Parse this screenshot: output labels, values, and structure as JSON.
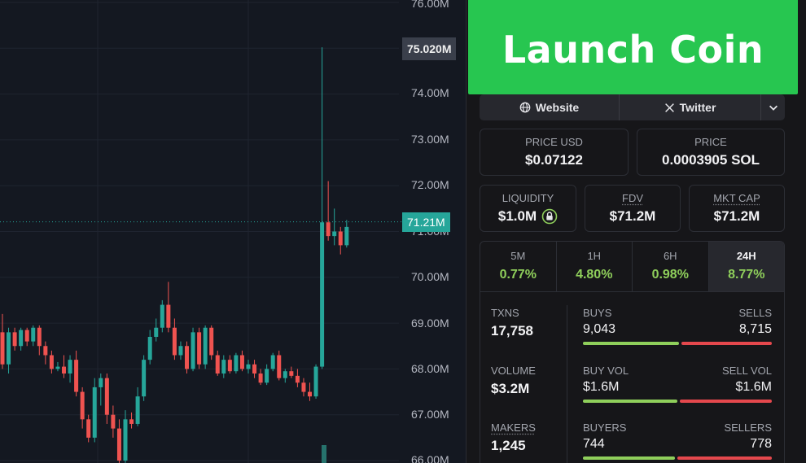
{
  "chart": {
    "axis_labels": [
      "76.00M",
      "74.00M",
      "73.00M",
      "72.00M",
      "71.00M",
      "70.00M",
      "69.00M",
      "68.00M",
      "67.00M",
      "66.00M"
    ],
    "high_price_label": "75.020M",
    "current_price_label": "71.21M",
    "colors": {
      "up": "#26a69a",
      "down": "#ef5350",
      "background": "#141821",
      "grid": "#1f2430"
    }
  },
  "chart_data": {
    "type": "candlestick",
    "unit": "market cap (USD)",
    "ylim": [
      66.0,
      76.0
    ],
    "current": 71.21,
    "high": 75.02,
    "candles": [
      {
        "o": 68.8,
        "c": 68.1,
        "h": 69.2,
        "l": 68.0
      },
      {
        "o": 68.1,
        "c": 68.8,
        "h": 68.9,
        "l": 67.9
      },
      {
        "o": 68.8,
        "c": 68.5,
        "h": 68.9,
        "l": 68.4
      },
      {
        "o": 68.5,
        "c": 68.85,
        "h": 68.9,
        "l": 68.4
      },
      {
        "o": 68.85,
        "c": 68.6,
        "h": 68.9,
        "l": 68.5
      },
      {
        "o": 68.6,
        "c": 68.9,
        "h": 68.95,
        "l": 68.5
      },
      {
        "o": 68.9,
        "c": 68.5,
        "h": 68.95,
        "l": 68.3
      },
      {
        "o": 68.5,
        "c": 68.3,
        "h": 68.6,
        "l": 68.1
      },
      {
        "o": 68.3,
        "c": 68.0,
        "h": 68.4,
        "l": 67.9
      },
      {
        "o": 68.0,
        "c": 68.05,
        "h": 68.15,
        "l": 67.95
      },
      {
        "o": 68.05,
        "c": 67.9,
        "h": 68.3,
        "l": 67.8
      },
      {
        "o": 67.9,
        "c": 68.2,
        "h": 68.3,
        "l": 67.7
      },
      {
        "o": 68.2,
        "c": 67.5,
        "h": 68.4,
        "l": 67.4
      },
      {
        "o": 67.5,
        "c": 66.9,
        "h": 67.6,
        "l": 66.7
      },
      {
        "o": 66.9,
        "c": 66.5,
        "h": 67.0,
        "l": 66.4
      },
      {
        "o": 66.5,
        "c": 67.6,
        "h": 67.8,
        "l": 66.4
      },
      {
        "o": 67.6,
        "c": 67.8,
        "h": 67.9,
        "l": 67.2
      },
      {
        "o": 67.8,
        "c": 67.0,
        "h": 67.9,
        "l": 66.8
      },
      {
        "o": 67.0,
        "c": 66.7,
        "h": 67.2,
        "l": 66.5
      },
      {
        "o": 66.7,
        "c": 66.0,
        "h": 66.9,
        "l": 65.9
      },
      {
        "o": 66.0,
        "c": 66.9,
        "h": 67.1,
        "l": 65.95
      },
      {
        "o": 66.9,
        "c": 66.8,
        "h": 67.05,
        "l": 66.7
      },
      {
        "o": 66.8,
        "c": 67.4,
        "h": 67.6,
        "l": 66.75
      },
      {
        "o": 67.4,
        "c": 68.2,
        "h": 68.3,
        "l": 67.3
      },
      {
        "o": 68.2,
        "c": 68.7,
        "h": 68.85,
        "l": 68.1
      },
      {
        "o": 68.7,
        "c": 68.9,
        "h": 69.1,
        "l": 68.6
      },
      {
        "o": 68.9,
        "c": 69.4,
        "h": 69.5,
        "l": 68.8
      },
      {
        "o": 69.4,
        "c": 68.9,
        "h": 69.9,
        "l": 68.8
      },
      {
        "o": 68.9,
        "c": 68.3,
        "h": 69.1,
        "l": 68.2
      },
      {
        "o": 68.3,
        "c": 68.5,
        "h": 68.6,
        "l": 68.2
      },
      {
        "o": 68.5,
        "c": 68.0,
        "h": 68.6,
        "l": 67.9
      },
      {
        "o": 68.0,
        "c": 68.8,
        "h": 68.9,
        "l": 67.95
      },
      {
        "o": 68.8,
        "c": 68.1,
        "h": 68.9,
        "l": 68.0
      },
      {
        "o": 68.1,
        "c": 68.9,
        "h": 68.95,
        "l": 68.0
      },
      {
        "o": 68.9,
        "c": 68.3,
        "h": 68.95,
        "l": 68.2
      },
      {
        "o": 68.3,
        "c": 67.9,
        "h": 68.4,
        "l": 67.85
      },
      {
        "o": 67.9,
        "c": 68.2,
        "h": 68.3,
        "l": 67.8
      },
      {
        "o": 68.2,
        "c": 67.95,
        "h": 68.3,
        "l": 67.9
      },
      {
        "o": 67.95,
        "c": 68.3,
        "h": 68.35,
        "l": 67.9
      },
      {
        "o": 68.3,
        "c": 68.0,
        "h": 68.4,
        "l": 67.95
      },
      {
        "o": 68.0,
        "c": 68.1,
        "h": 68.2,
        "l": 67.9
      },
      {
        "o": 68.1,
        "c": 67.9,
        "h": 68.2,
        "l": 67.8
      },
      {
        "o": 67.9,
        "c": 67.7,
        "h": 68.0,
        "l": 67.65
      },
      {
        "o": 67.7,
        "c": 68.0,
        "h": 68.1,
        "l": 67.65
      },
      {
        "o": 68.0,
        "c": 68.3,
        "h": 68.35,
        "l": 67.95
      },
      {
        "o": 68.3,
        "c": 67.8,
        "h": 68.4,
        "l": 67.75
      },
      {
        "o": 67.8,
        "c": 67.95,
        "h": 68.0,
        "l": 67.7
      },
      {
        "o": 67.95,
        "c": 67.85,
        "h": 68.05,
        "l": 67.8
      },
      {
        "o": 67.85,
        "c": 67.7,
        "h": 68.0,
        "l": 67.6
      },
      {
        "o": 67.7,
        "c": 67.5,
        "h": 67.8,
        "l": 67.4
      },
      {
        "o": 67.5,
        "c": 67.4,
        "h": 67.7,
        "l": 67.3
      },
      {
        "o": 67.4,
        "c": 68.05,
        "h": 68.1,
        "l": 67.35
      },
      {
        "o": 68.05,
        "c": 71.2,
        "h": 75.02,
        "l": 68.0
      },
      {
        "o": 71.2,
        "c": 70.9,
        "h": 72.1,
        "l": 70.8
      },
      {
        "o": 70.9,
        "c": 71.0,
        "h": 71.5,
        "l": 70.7
      },
      {
        "o": 71.0,
        "c": 70.7,
        "h": 71.1,
        "l": 70.5
      },
      {
        "o": 70.7,
        "c": 71.1,
        "h": 71.25,
        "l": 70.65
      }
    ],
    "volume_bar": {
      "level": 0.4
    }
  },
  "panel": {
    "title": "Launch Coin",
    "links": {
      "website": "Website",
      "twitter": "Twitter"
    },
    "price_usd": {
      "label": "PRICE USD",
      "value": "$0.07122"
    },
    "price_sol": {
      "label": "PRICE",
      "value": "0.0003905 SOL"
    },
    "liquidity": {
      "label": "LIQUIDITY",
      "value": "$1.0M"
    },
    "fdv": {
      "label": "FDV",
      "value": "$71.2M"
    },
    "mkt_cap": {
      "label": "MKT CAP",
      "value": "$71.2M"
    },
    "timeframes": [
      {
        "label": "5M",
        "value": "0.77%"
      },
      {
        "label": "1H",
        "value": "4.80%"
      },
      {
        "label": "6H",
        "value": "0.98%"
      },
      {
        "label": "24H",
        "value": "8.77%",
        "active": true
      }
    ],
    "txns": {
      "label": "TXNS",
      "value": "17,758"
    },
    "volume": {
      "label": "VOLUME",
      "value": "$3.2M"
    },
    "makers": {
      "label": "MAKERS",
      "value": "1,245"
    },
    "buys": {
      "label": "BUYS",
      "value": "9,043",
      "ratio": 0.509
    },
    "sells": {
      "label": "SELLS",
      "value": "8,715"
    },
    "buy_vol": {
      "label": "BUY VOL",
      "value": "$1.6M",
      "ratio": 0.5
    },
    "sell_vol": {
      "label": "SELL VOL",
      "value": "$1.6M"
    },
    "buyers": {
      "label": "BUYERS",
      "value": "744",
      "ratio": 0.489
    },
    "sellers": {
      "label": "SELLERS",
      "value": "778"
    },
    "colors": {
      "banner": "#27c650",
      "positive": "#8fcf5b",
      "negative": "#e5484d"
    }
  }
}
